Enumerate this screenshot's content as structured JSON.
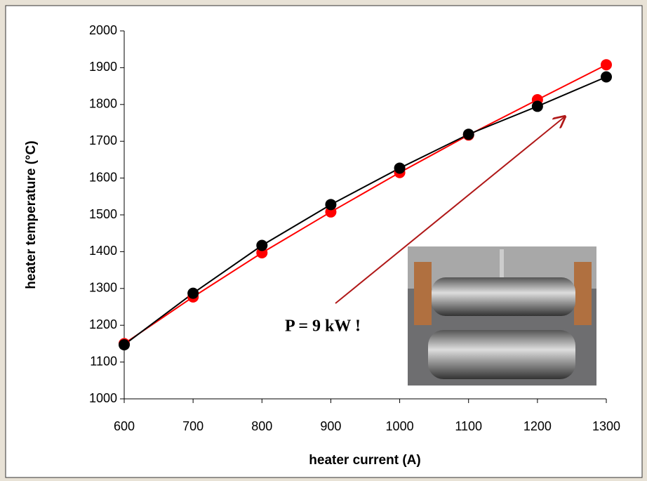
{
  "chart_data": {
    "type": "line",
    "x_label": "heater current (A)",
    "y_label": "heater temperature  (°C)",
    "x": [
      600,
      700,
      800,
      900,
      1000,
      1100,
      1200,
      1300
    ],
    "series": [
      {
        "color": "#ff0000",
        "values": [
          1150,
          1277,
          1397,
          1508,
          1615,
          1717,
          1813,
          1908
        ]
      },
      {
        "color": "#000000",
        "values": [
          1147,
          1287,
          1417,
          1528,
          1627,
          1719,
          1795,
          1875
        ]
      }
    ],
    "xlim": [
      600,
      1300
    ],
    "xticks": [
      600,
      700,
      800,
      900,
      1000,
      1100,
      1200,
      1300
    ],
    "ylim": [
      1000,
      2000
    ],
    "yticks": [
      1000,
      1100,
      1200,
      1300,
      1400,
      1500,
      1600,
      1700,
      1800,
      1900,
      2000
    ],
    "annotation": "P = 9 kW !",
    "annotation_color": "#b01818"
  }
}
